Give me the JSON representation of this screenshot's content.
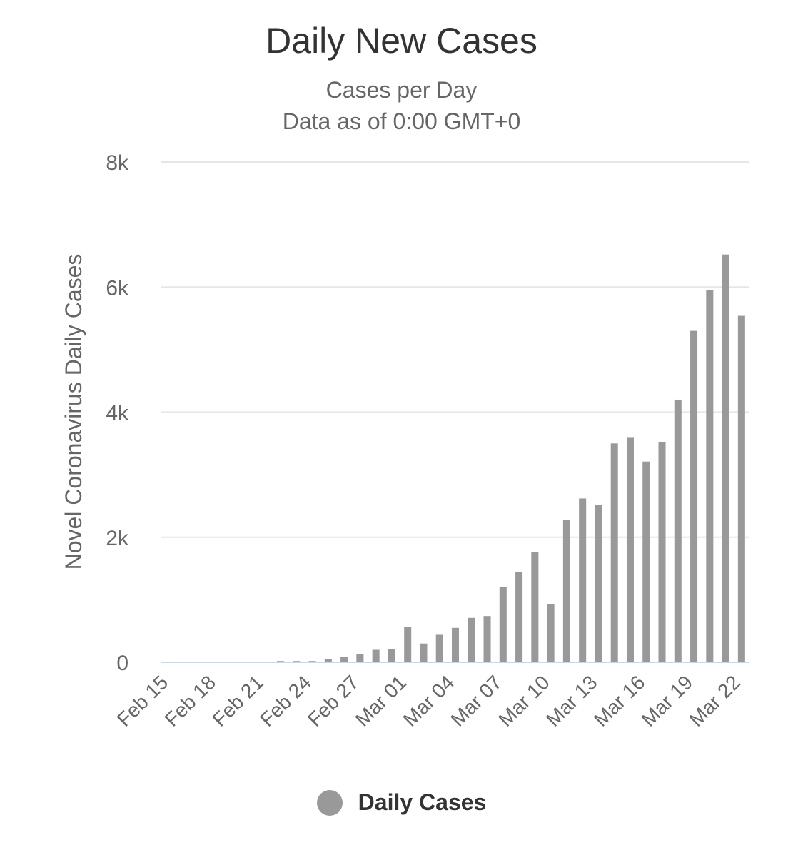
{
  "chart_data": {
    "type": "bar",
    "title": "Daily New Cases",
    "subtitle": [
      "Cases per Day",
      "Data as of 0:00 GMT+0"
    ],
    "ylabel": "Novel Coronavirus Daily Cases",
    "xlabel": "",
    "ylim": [
      0,
      8000
    ],
    "yticks": [
      {
        "value": 0,
        "label": "0"
      },
      {
        "value": 2000,
        "label": "2k"
      },
      {
        "value": 4000,
        "label": "4k"
      },
      {
        "value": 6000,
        "label": "6k"
      },
      {
        "value": 8000,
        "label": "8k"
      }
    ],
    "xticks": [
      "Feb 15",
      "Feb 18",
      "Feb 21",
      "Feb 24",
      "Feb 27",
      "Mar 01",
      "Mar 04",
      "Mar 07",
      "Mar 10",
      "Mar 13",
      "Mar 16",
      "Mar 19",
      "Mar 22"
    ],
    "grid": true,
    "legend_position": "bottom-center",
    "colors": {
      "bar": "#999999",
      "grid": "#e6e6e6",
      "axis": "#ccd6eb"
    },
    "categories": [
      "Feb 15",
      "Feb 16",
      "Feb 17",
      "Feb 18",
      "Feb 19",
      "Feb 20",
      "Feb 21",
      "Feb 22",
      "Feb 23",
      "Feb 24",
      "Feb 25",
      "Feb 26",
      "Feb 27",
      "Feb 28",
      "Feb 29",
      "Mar 01",
      "Mar 02",
      "Mar 03",
      "Mar 04",
      "Mar 05",
      "Mar 06",
      "Mar 07",
      "Mar 08",
      "Mar 09",
      "Mar 10",
      "Mar 11",
      "Mar 12",
      "Mar 13",
      "Mar 14",
      "Mar 15",
      "Mar 16",
      "Mar 17",
      "Mar 18",
      "Mar 19",
      "Mar 20",
      "Mar 21",
      "Mar 22"
    ],
    "series": [
      {
        "name": "Daily Cases",
        "values": [
          0,
          0,
          0,
          0,
          0,
          0,
          0,
          20,
          20,
          20,
          50,
          90,
          130,
          200,
          210,
          560,
          300,
          440,
          550,
          710,
          740,
          1210,
          1450,
          1760,
          930,
          2280,
          2620,
          2520,
          3500,
          3590,
          3210,
          3520,
          4200,
          5300,
          5950,
          6520,
          5540
        ]
      }
    ]
  }
}
